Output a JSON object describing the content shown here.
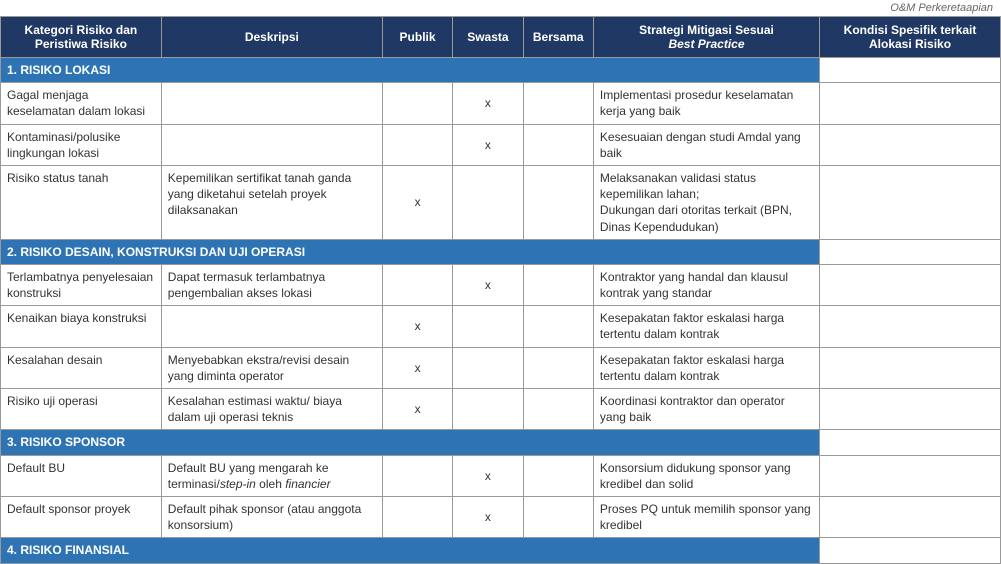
{
  "caption": "O&M Perkeretaapian",
  "headers": {
    "kategori": "Kategori Risiko dan Peristiwa Risiko",
    "deskripsi": "Deskripsi",
    "publik": "Publik",
    "swasta": "Swasta",
    "bersama": "Bersama",
    "strategi_line1": "Strategi Mitigasi Sesuai",
    "strategi_line2": "Best Practice",
    "kondisi": "Kondisi Spesifik terkait Alokasi Risiko"
  },
  "sections": [
    {
      "title": "1. RISIKO LOKASI",
      "rows": [
        {
          "kategori": "Gagal menjaga keselamatan dalam lokasi",
          "deskripsi": "",
          "publik": "",
          "swasta": "x",
          "bersama": "",
          "strategi": "Implementasi prosedur keselamatan kerja yang baik",
          "kondisi": ""
        },
        {
          "kategori": "Kontaminasi/polusike lingkungan lokasi",
          "deskripsi": "",
          "publik": "",
          "swasta": "x",
          "bersama": "",
          "strategi": "Kesesuaian dengan studi  Amdal yang baik",
          "kondisi": ""
        },
        {
          "kategori": "Risiko status tanah",
          "deskripsi": "Kepemilikan sertifikat tanah ganda yang diketahui setelah proyek dilaksanakan",
          "publik": "x",
          "swasta": "",
          "bersama": "",
          "strategi": "Melaksanakan validasi status kepemilikan lahan;\nDukungan dari otoritas terkait (BPN, Dinas Kependudukan)",
          "kondisi": ""
        }
      ]
    },
    {
      "title": "2. RISIKO DESAIN, KONSTRUKSI DAN UJI OPERASI",
      "rows": [
        {
          "kategori": "Terlambatnya penyelesaian konstruksi",
          "deskripsi": "Dapat termasuk terlambatnya pengembalian akses lokasi",
          "publik": "",
          "swasta": "x",
          "bersama": "",
          "strategi": "Kontraktor yang handal dan klausul kontrak yang standar",
          "kondisi": ""
        },
        {
          "kategori": "Kenaikan biaya konstruksi",
          "deskripsi": "",
          "publik": "x",
          "swasta": "",
          "bersama": "",
          "strategi": "Kesepakatan faktor eskalasi harga tertentu dalam kontrak",
          "kondisi": ""
        },
        {
          "kategori": "Kesalahan desain",
          "deskripsi": "Menyebabkan ekstra/revisi desain yang diminta operator",
          "publik": "x",
          "swasta": "",
          "bersama": "",
          "strategi": "Kesepakatan faktor eskalasi harga tertentu dalam kontrak",
          "kondisi": ""
        },
        {
          "kategori": "Risiko uji operasi",
          "deskripsi": "Kesalahan estimasi waktu/ biaya dalam uji operasi teknis",
          "publik": "x",
          "swasta": "",
          "bersama": "",
          "strategi": "Koordinasi kontraktor dan operator yang baik",
          "kondisi": ""
        }
      ]
    },
    {
      "title": "3. RISIKO SPONSOR",
      "rows": [
        {
          "kategori": "Default BU",
          "deskripsi_html": "Default BU yang mengarah ke terminasi/<em>step-in</em> oleh <em>financier</em>",
          "publik": "",
          "swasta": "x",
          "bersama": "",
          "strategi": "Konsorsium didukung sponsor yang kredibel dan solid",
          "kondisi": ""
        },
        {
          "kategori": "Default sponsor proyek",
          "deskripsi": "Default pihak sponsor (atau anggota konsorsium)",
          "publik": "",
          "swasta": "x",
          "bersama": "",
          "strategi": "Proses PQ untuk memilih sponsor yang kredibel",
          "kondisi": ""
        }
      ]
    },
    {
      "title": "4. RISIKO FINANSIAL",
      "rows": []
    }
  ],
  "colors": {
    "header_bg": "#1f3864",
    "section_bg": "#2e74b5",
    "border": "#999999",
    "text": "#333333"
  }
}
